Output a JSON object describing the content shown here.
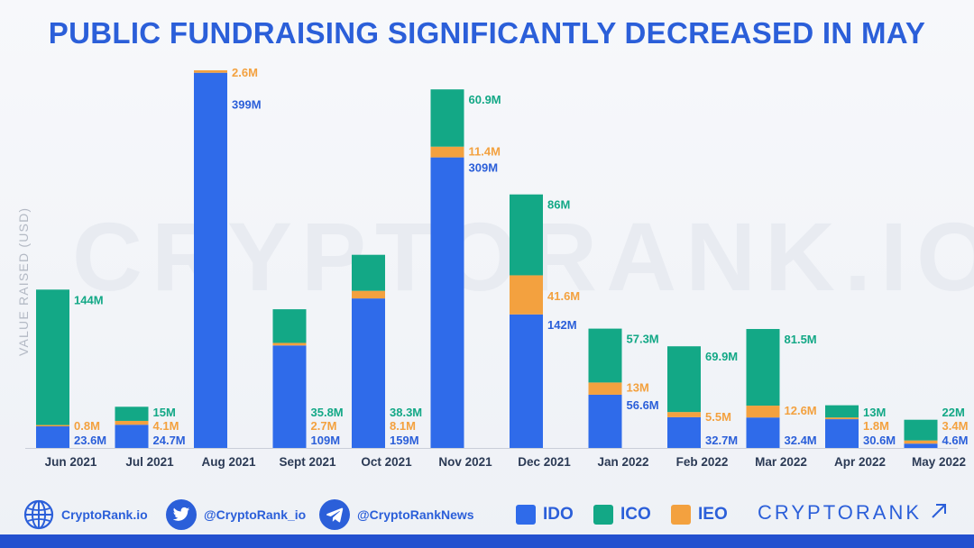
{
  "title": "PUBLIC FUNDRAISING SIGNIFICANTLY DECREASED IN MAY",
  "watermark": "CRYPTORANK.IO",
  "footer": {
    "links": [
      {
        "name": "website",
        "label": "CryptoRank.io",
        "icon": "globe-icon"
      },
      {
        "name": "twitter",
        "label": "@CryptoRank_io",
        "icon": "twitter-bird-icon"
      },
      {
        "name": "telegram",
        "label": "@CryptoRankNews",
        "icon": "telegram-plane-icon"
      }
    ],
    "brand": "CRYPTORANK",
    "brand_icon": "arrow-up-right-icon"
  },
  "colors": {
    "IDO": "#2f6bea",
    "ICO": "#13a886",
    "IEO": "#f3a13f",
    "label_ido": "#2b5fd9",
    "label_ico": "#13a886",
    "label_ieo": "#f3a13f",
    "axis_text": "#2b3a55"
  },
  "chart_data": {
    "type": "bar",
    "stacked": true,
    "ylabel": "VALUE RAISED (USD)",
    "unit": "M",
    "categories": [
      "Jun 2021",
      "Jul 2021",
      "Aug 2021",
      "Sept 2021",
      "Oct 2021",
      "Nov 2021",
      "Dec 2021",
      "Jan 2022",
      "Feb 2022",
      "Mar 2022",
      "Apr 2022",
      "May 2022"
    ],
    "series": [
      {
        "name": "IDO",
        "values": [
          23.6,
          24.7,
          399,
          109,
          159,
          309,
          142,
          56.6,
          32.7,
          32.4,
          30.6,
          4.6
        ],
        "labels": [
          "23.6M",
          "24.7M",
          "399M",
          "109M",
          "159M",
          "309M",
          "142M",
          "56.6M",
          "32.7M",
          "32.4M",
          "30.6M",
          "4.6M"
        ]
      },
      {
        "name": "IEO",
        "values": [
          0.8,
          4.1,
          2.6,
          2.7,
          8.1,
          11.4,
          41.6,
          13,
          5.5,
          12.6,
          1.8,
          3.4
        ],
        "labels": [
          "0.8M",
          "4.1M",
          "2.6M",
          "2.7M",
          "8.1M",
          "11.4M",
          "41.6M",
          "13M",
          "5.5M",
          "12.6M",
          "1.8M",
          "3.4M"
        ]
      },
      {
        "name": "ICO",
        "values": [
          144,
          15,
          0,
          35.8,
          38.3,
          60.9,
          86,
          57.3,
          69.9,
          81.5,
          13,
          22
        ],
        "labels": [
          "144M",
          "15M",
          "",
          "35.8M",
          "38.3M",
          "60.9M",
          "86M",
          "57.3M",
          "69.9M",
          "81.5M",
          "13M",
          "22M"
        ]
      }
    ],
    "legend": [
      "IDO",
      "ICO",
      "IEO"
    ],
    "legend_position": "bottom",
    "grid": false
  }
}
